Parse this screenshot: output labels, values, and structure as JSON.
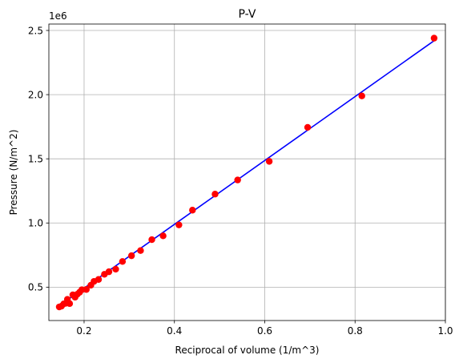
{
  "chart_data": {
    "type": "scatter",
    "title": "P-V",
    "xlabel": "Reciprocal of volume (1/m^3)",
    "ylabel": "Pressure (N/m^2)",
    "y_offset_label": "1e6",
    "xlim": [
      0.122,
      1.0
    ],
    "ylim": [
      240000,
      2550000
    ],
    "x_ticks": [
      0.2,
      0.4,
      0.6,
      0.8,
      1.0
    ],
    "x_tick_labels": [
      "0.2",
      "0.4",
      "0.6",
      "0.8",
      "1.0"
    ],
    "y_ticks": [
      500000,
      1000000,
      1500000,
      2000000,
      2500000
    ],
    "y_tick_labels": [
      "0.5",
      "1.0",
      "1.5",
      "2.0",
      "2.5"
    ],
    "grid": true,
    "colors": {
      "points": "#ff0000",
      "fit_line": "#0000ff"
    },
    "series": [
      {
        "kind": "scatter",
        "points": [
          [
            0.145,
            346000
          ],
          [
            0.15,
            352000
          ],
          [
            0.155,
            370000
          ],
          [
            0.16,
            375000
          ],
          [
            0.163,
            405000
          ],
          [
            0.168,
            372000
          ],
          [
            0.175,
            440000
          ],
          [
            0.18,
            422000
          ],
          [
            0.185,
            445000
          ],
          [
            0.19,
            460000
          ],
          [
            0.195,
            480000
          ],
          [
            0.205,
            482000
          ],
          [
            0.215,
            515000
          ],
          [
            0.222,
            545000
          ],
          [
            0.232,
            560000
          ],
          [
            0.245,
            600000
          ],
          [
            0.255,
            620000
          ],
          [
            0.27,
            640000
          ],
          [
            0.285,
            700000
          ],
          [
            0.305,
            745000
          ],
          [
            0.325,
            785000
          ],
          [
            0.35,
            870000
          ],
          [
            0.375,
            900000
          ],
          [
            0.41,
            985000
          ],
          [
            0.44,
            1100000
          ],
          [
            0.49,
            1225000
          ],
          [
            0.54,
            1335000
          ],
          [
            0.61,
            1480000
          ],
          [
            0.695,
            1745000
          ],
          [
            0.815,
            1990000
          ],
          [
            0.975,
            2440000
          ]
        ]
      },
      {
        "kind": "line",
        "points": [
          [
            0.145,
            355000
          ],
          [
            0.975,
            2420000
          ]
        ]
      }
    ]
  }
}
